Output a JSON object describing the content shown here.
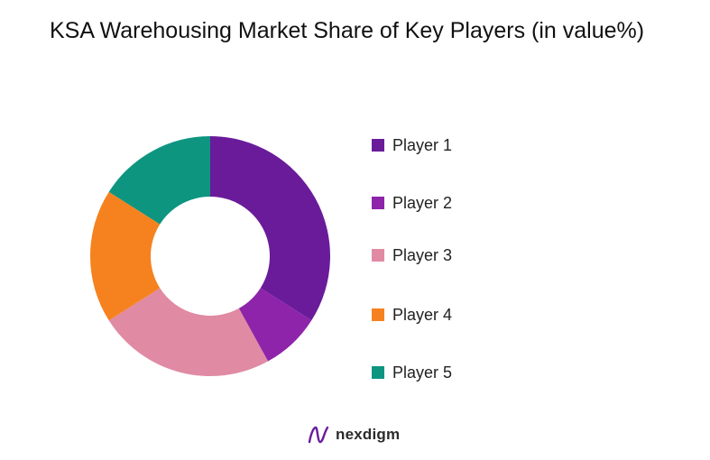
{
  "chart_data": {
    "type": "pie",
    "title": "KSA Warehousing  Market Share of Key Players (in value%)",
    "labels": [
      "Player 1",
      "Player 2",
      "Player 3",
      "Player 4",
      "Player 5"
    ],
    "values": [
      34,
      8,
      24,
      18,
      16
    ],
    "colors": [
      "#6a1b9a",
      "#8e24aa",
      "#e08aa3",
      "#f5821f",
      "#0e9580"
    ],
    "donut": true,
    "legend_position": "right"
  },
  "brand": {
    "name": "nexdigm",
    "logo_icon": "nexdigm-logo-icon",
    "logo_color": "#6a1b9a"
  }
}
